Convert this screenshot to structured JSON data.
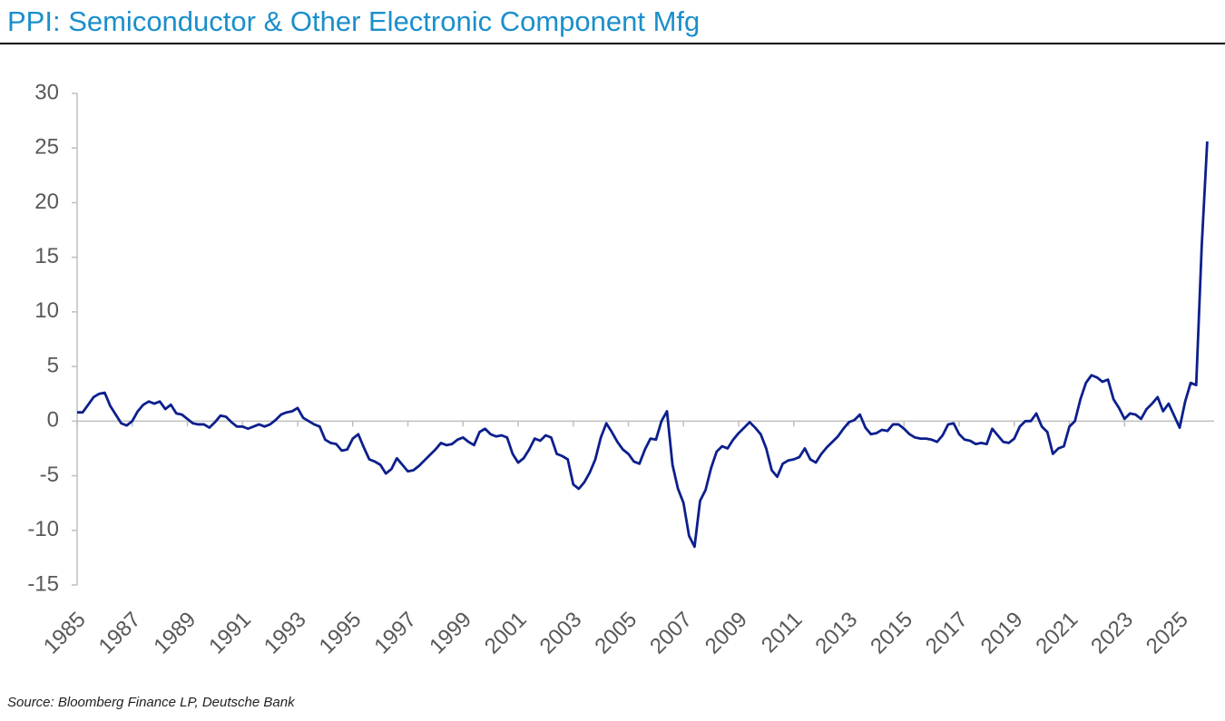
{
  "chart_data": {
    "type": "line",
    "title": "PPI: Semiconductor & Other Electronic Component Mfg",
    "source": "Source: Bloomberg Finance LP, Deutsche Bank",
    "color": "#0c1f8c",
    "x": [
      1985,
      1985.2,
      1985.4,
      1985.6,
      1985.8,
      1986,
      1986.2,
      1986.4,
      1986.6,
      1986.8,
      1987,
      1987.2,
      1987.4,
      1987.6,
      1987.8,
      1988,
      1988.2,
      1988.4,
      1988.6,
      1988.8,
      1989,
      1989.2,
      1989.4,
      1989.6,
      1989.8,
      1990,
      1990.2,
      1990.4,
      1990.6,
      1990.8,
      1991,
      1991.2,
      1991.4,
      1991.6,
      1991.8,
      1992,
      1992.2,
      1992.4,
      1992.6,
      1992.8,
      1993,
      1993.2,
      1993.4,
      1993.6,
      1993.8,
      1994,
      1994.2,
      1994.4,
      1994.6,
      1994.8,
      1995,
      1995.2,
      1995.4,
      1995.6,
      1995.8,
      1996,
      1996.2,
      1996.4,
      1996.6,
      1996.8,
      1997,
      1997.2,
      1997.4,
      1997.6,
      1997.8,
      1998,
      1998.2,
      1998.4,
      1998.6,
      1998.8,
      1999,
      1999.2,
      1999.4,
      1999.6,
      1999.8,
      2000,
      2000.2,
      2000.4,
      2000.6,
      2000.8,
      2001,
      2001.2,
      2001.4,
      2001.6,
      2001.8,
      2002,
      2002.2,
      2002.4,
      2002.6,
      2002.8,
      2003,
      2003.2,
      2003.4,
      2003.6,
      2003.8,
      2004,
      2004.2,
      2004.4,
      2004.6,
      2004.8,
      2005,
      2005.2,
      2005.4,
      2005.6,
      2005.8,
      2006,
      2006.2,
      2006.4,
      2006.6,
      2006.8,
      2007,
      2007.2,
      2007.4,
      2007.6,
      2007.8,
      2008,
      2008.2,
      2008.4,
      2008.6,
      2008.8,
      2009,
      2009.2,
      2009.4,
      2009.6,
      2009.8,
      2010,
      2010.2,
      2010.4,
      2010.6,
      2010.8,
      2011,
      2011.2,
      2011.4,
      2011.6,
      2011.8,
      2012,
      2012.2,
      2012.4,
      2012.6,
      2012.8,
      2013,
      2013.2,
      2013.4,
      2013.6,
      2013.8,
      2014,
      2014.2,
      2014.4,
      2014.6,
      2014.8,
      2015,
      2015.2,
      2015.4,
      2015.6,
      2015.8,
      2016,
      2016.2,
      2016.4,
      2016.6,
      2016.8,
      2017,
      2017.2,
      2017.4,
      2017.6,
      2017.8,
      2018,
      2018.2,
      2018.4,
      2018.6,
      2018.8,
      2019,
      2019.2,
      2019.4,
      2019.6,
      2019.8,
      2020,
      2020.2,
      2020.4,
      2020.6,
      2020.8,
      2021,
      2021.2,
      2021.4,
      2021.6,
      2021.8,
      2022,
      2022.2,
      2022.4,
      2022.6,
      2022.8,
      2023,
      2023.2,
      2023.4,
      2023.6,
      2023.8,
      2024,
      2024.2,
      2024.4,
      2024.6,
      2024.8,
      2025,
      2025.2,
      2025.4,
      2025.6,
      2025.8,
      2026
    ],
    "values": [
      0.8,
      0.8,
      1.5,
      2.2,
      2.5,
      2.6,
      1.4,
      0.6,
      -0.2,
      -0.4,
      0,
      0.9,
      1.5,
      1.8,
      1.6,
      1.8,
      1.1,
      1.5,
      0.7,
      0.6,
      0.2,
      -0.2,
      -0.3,
      -0.3,
      -0.6,
      -0.1,
      0.5,
      0.4,
      -0.1,
      -0.5,
      -0.5,
      -0.7,
      -0.5,
      -0.3,
      -0.5,
      -0.3,
      0.1,
      0.6,
      0.8,
      0.9,
      1.2,
      0.3,
      0,
      -0.3,
      -0.5,
      -1.7,
      -2,
      -2.1,
      -2.7,
      -2.6,
      -1.6,
      -1.2,
      -2.4,
      -3.5,
      -3.7,
      -4,
      -4.8,
      -4.4,
      -3.4,
      -4,
      -4.6,
      -4.5,
      -4.1,
      -3.6,
      -3.1,
      -2.6,
      -2,
      -2.2,
      -2.1,
      -1.7,
      -1.5,
      -1.9,
      -2.2,
      -1,
      -0.7,
      -1.2,
      -1.4,
      -1.3,
      -1.5,
      -3,
      -3.8,
      -3.4,
      -2.6,
      -1.6,
      -1.8,
      -1.3,
      -1.5,
      -3,
      -3.2,
      -3.5,
      -5.8,
      -6.2,
      -5.6,
      -4.7,
      -3.5,
      -1.5,
      -0.2,
      -1,
      -1.9,
      -2.6,
      -3,
      -3.7,
      -3.9,
      -2.6,
      -1.6,
      -1.7,
      0,
      0.9,
      -4,
      -6.2,
      -7.5,
      -10.5,
      -11.5,
      -7.3,
      -6.3,
      -4.3,
      -2.8,
      -2.3,
      -2.5,
      -1.7,
      -1.1,
      -0.6,
      -0.1,
      -0.6,
      -1.2,
      -2.5,
      -4.5,
      -5.1,
      -3.9,
      -3.6,
      -3.5,
      -3.3,
      -2.5,
      -3.5,
      -3.8,
      -3,
      -2.4,
      -1.9,
      -1.4,
      -0.7,
      -0.1,
      0.1,
      0.6,
      -0.6,
      -1.2,
      -1.1,
      -0.8,
      -0.9,
      -0.3,
      -0.3,
      -0.7,
      -1.2,
      -1.5,
      -1.6,
      -1.6,
      -1.7,
      -1.9,
      -1.3,
      -0.3,
      -0.2,
      -1.2,
      -1.7,
      -1.8,
      -2.1,
      -2,
      -2.1,
      -0.7,
      -1.3,
      -1.9,
      -2,
      -1.6,
      -0.5,
      0,
      0,
      0.7,
      -0.5,
      -1,
      -3,
      -2.5,
      -2.3,
      -0.5,
      0,
      2,
      3.5,
      4.2,
      4,
      3.6,
      3.8,
      2,
      1.2,
      0.2,
      0.7,
      0.6,
      0.2,
      1.1,
      1.6,
      2.2,
      0.9,
      1.6,
      0.5,
      -0.6,
      1.8,
      3.5,
      3.3,
      16,
      25.6
    ],
    "xlim": [
      1985,
      2026.25
    ],
    "xticks": [
      1985,
      1987,
      1989,
      1991,
      1993,
      1995,
      1997,
      1999,
      2001,
      2003,
      2005,
      2007,
      2009,
      2011,
      2013,
      2015,
      2017,
      2019,
      2021,
      2023,
      2025
    ],
    "ylim": [
      -15,
      30
    ],
    "yticks": [
      -15,
      -10,
      -5,
      0,
      5,
      10,
      15,
      20,
      25,
      30
    ]
  }
}
